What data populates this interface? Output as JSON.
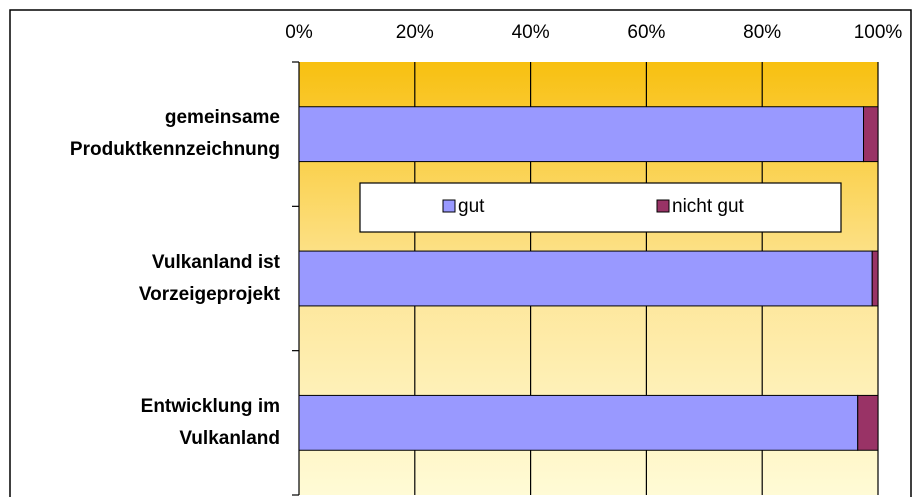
{
  "chart_data": {
    "type": "stacked_barh",
    "categories": [
      "gemeinsame\nProduktkennzeichnung",
      "Vulkanland ist\nVorzeigeprojekt",
      "Entwicklung im\nVulkanland"
    ],
    "series": [
      {
        "name": "gut",
        "color": "#9999ff",
        "values": [
          97.5,
          99,
          96.5
        ]
      },
      {
        "name": "nicht gut",
        "color": "#993366",
        "values": [
          2.5,
          1,
          3.5
        ]
      }
    ],
    "xlim": [
      0,
      100
    ],
    "xticks": [
      {
        "value": 0,
        "label": "0%"
      },
      {
        "value": 20,
        "label": "20%"
      },
      {
        "value": 40,
        "label": "40%"
      },
      {
        "value": 60,
        "label": "60%"
      },
      {
        "value": 80,
        "label": "80%"
      },
      {
        "value": 100,
        "label": "100%"
      }
    ],
    "grid": true
  }
}
